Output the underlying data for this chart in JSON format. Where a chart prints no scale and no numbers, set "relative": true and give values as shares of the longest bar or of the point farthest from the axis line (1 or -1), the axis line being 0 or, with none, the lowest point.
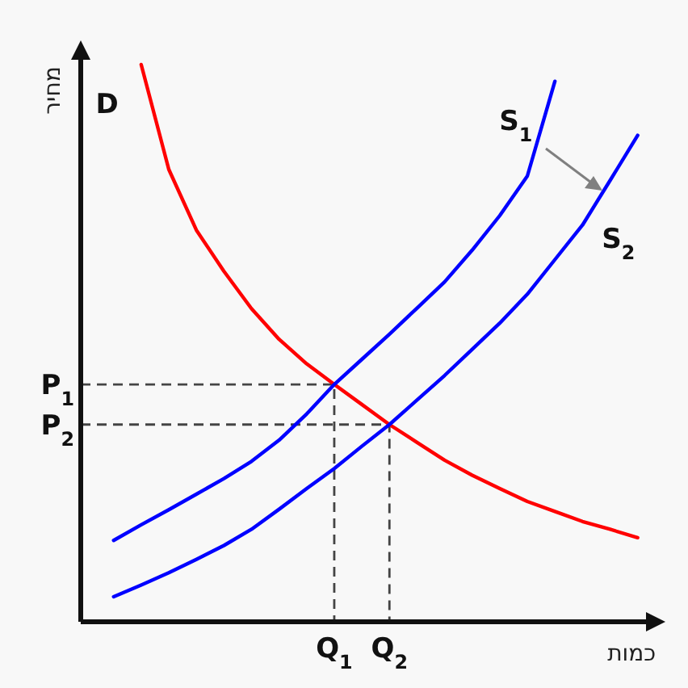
{
  "chart_data": {
    "type": "line",
    "relative": true,
    "xlabel": "כמות",
    "ylabel": "מחיר",
    "categories": [
      null,
      null,
      null,
      null,
      null,
      null,
      null,
      null,
      null,
      "Q$_{1}$",
      null,
      "Q$_{2}$",
      null,
      null,
      null,
      null,
      null,
      null,
      null,
      null,
      null
    ],
    "series": [
      {
        "name": "D",
        "color": "#ff0000",
        "values": [
          null,
          null,
          1.0,
          0.812,
          0.703,
          0.629,
          0.562,
          0.507,
          0.463,
          0.426,
          0.39,
          0.354,
          0.322,
          0.29,
          0.263,
          0.239,
          0.216,
          0.198,
          0.18,
          0.166,
          0.151
        ]
      },
      {
        "name": "S$_{1}$",
        "color": "#0000ff",
        "values": [
          null,
          0.146,
          0.174,
          0.201,
          0.229,
          0.257,
          0.288,
          0.326,
          0.373,
          0.426,
          0.471,
          0.516,
          0.563,
          0.61,
          0.667,
          0.729,
          0.8,
          0.97,
          null,
          null,
          null
        ]
      },
      {
        "name": "S$_{2}$",
        "color": "#0000ff",
        "values": [
          null,
          0.045,
          0.066,
          0.088,
          0.112,
          0.137,
          0.166,
          0.202,
          0.239,
          0.275,
          0.315,
          0.354,
          0.398,
          0.442,
          0.489,
          0.536,
          0.588,
          0.65,
          0.712,
          0.792,
          0.873
        ]
      }
    ],
    "ref_lines": [
      {
        "axis": "y",
        "value": 0.426,
        "label": "P$_{1}$",
        "color": "#444444",
        "line_style": "dashed"
      },
      {
        "axis": "y",
        "value": 0.354,
        "label": "P$_{2}$",
        "color": "#444444",
        "line_style": "dashed"
      }
    ]
  }
}
